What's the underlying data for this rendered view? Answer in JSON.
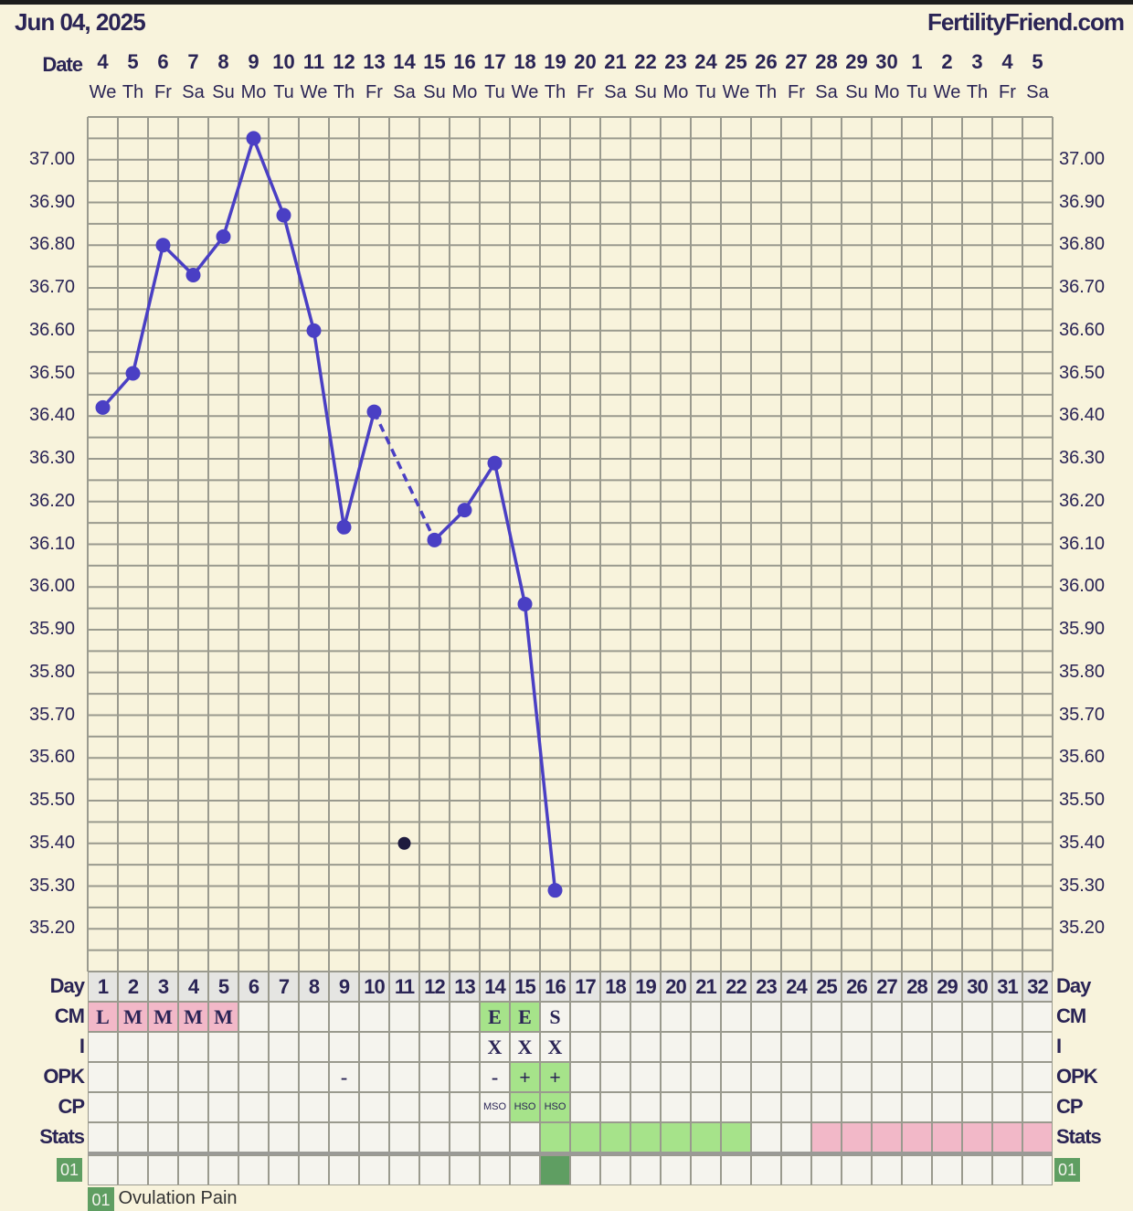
{
  "header": {
    "date": "Jun 04, 2025",
    "brand": "FertilityFriend.com"
  },
  "labels": {
    "date": "Date",
    "day": "Day",
    "cm": "CM",
    "i": "I",
    "opk": "OPK",
    "cp": "CP",
    "stats": "Stats",
    "tag": "01"
  },
  "legend": {
    "code": "01",
    "text": "Ovulation Pain"
  },
  "colors": {
    "line": "#4a3fc4",
    "excluded_point": "#1e1a3e",
    "pink": "#f2b8c8",
    "green": "#a6e38a",
    "dark_green": "#5f9e62",
    "background": "#f8f3dc",
    "grid": "#9a9a8e"
  },
  "chart_data": {
    "type": "line",
    "ylim": [
      35.1,
      37.1
    ],
    "yticks": [
      "37.00",
      "36.90",
      "36.80",
      "36.70",
      "36.60",
      "36.50",
      "36.40",
      "36.30",
      "36.20",
      "36.10",
      "36.00",
      "35.90",
      "35.80",
      "35.70",
      "35.60",
      "35.50",
      "35.40",
      "35.30",
      "35.20"
    ],
    "grid": true,
    "dates": [
      "4",
      "5",
      "6",
      "7",
      "8",
      "9",
      "10",
      "11",
      "12",
      "13",
      "14",
      "15",
      "16",
      "17",
      "18",
      "19",
      "20",
      "21",
      "22",
      "23",
      "24",
      "25",
      "26",
      "27",
      "28",
      "29",
      "30",
      "1",
      "2",
      "3",
      "4",
      "5"
    ],
    "weekdays": [
      "We",
      "Th",
      "Fr",
      "Sa",
      "Su",
      "Mo",
      "Tu",
      "We",
      "Th",
      "Fr",
      "Sa",
      "Su",
      "Mo",
      "Tu",
      "We",
      "Th",
      "Fr",
      "Sa",
      "Su",
      "Mo",
      "Tu",
      "We",
      "Th",
      "Fr",
      "Sa",
      "Su",
      "Mo",
      "Tu",
      "We",
      "Th",
      "Fr",
      "Sa"
    ],
    "days": [
      1,
      2,
      3,
      4,
      5,
      6,
      7,
      8,
      9,
      10,
      11,
      12,
      13,
      14,
      15,
      16,
      17,
      18,
      19,
      20,
      21,
      22,
      23,
      24,
      25,
      26,
      27,
      28,
      29,
      30,
      31,
      32
    ],
    "temperatures": [
      36.42,
      36.5,
      36.8,
      36.73,
      36.82,
      37.05,
      36.87,
      36.6,
      36.14,
      36.41,
      35.4,
      36.11,
      36.18,
      36.29,
      35.96,
      35.29
    ],
    "excluded_days": [
      11
    ]
  },
  "rows": {
    "cm": [
      "L",
      "M",
      "M",
      "M",
      "M",
      "",
      "",
      "",
      "",
      "",
      "",
      "",
      "",
      "E",
      "E",
      "S"
    ],
    "cm_colors": [
      "pink",
      "pink",
      "pink",
      "pink",
      "pink",
      "",
      "",
      "",
      "",
      "",
      "",
      "",
      "",
      "green",
      "green",
      ""
    ],
    "i": [
      "",
      "",
      "",
      "",
      "",
      "",
      "",
      "",
      "",
      "",
      "",
      "",
      "",
      "X",
      "X",
      "X"
    ],
    "opk": [
      "",
      "",
      "",
      "",
      "",
      "",
      "",
      "",
      "-",
      "",
      "",
      "",
      "",
      "-",
      "+",
      "+"
    ],
    "opk_colors": [
      "",
      "",
      "",
      "",
      "",
      "",
      "",
      "",
      "",
      "",
      "",
      "",
      "",
      "",
      "green",
      "green"
    ],
    "cp": [
      "",
      "",
      "",
      "",
      "",
      "",
      "",
      "",
      "",
      "",
      "",
      "",
      "",
      "MSO",
      "HSO",
      "HSO"
    ],
    "cp_colors": [
      "",
      "",
      "",
      "",
      "",
      "",
      "",
      "",
      "",
      "",
      "",
      "",
      "",
      "",
      "green",
      "green"
    ],
    "stats_colors": [
      "",
      "",
      "",
      "",
      "",
      "",
      "",
      "",
      "",
      "",
      "",
      "",
      "",
      "",
      "",
      "green",
      "green",
      "green",
      "green",
      "green",
      "green",
      "green",
      "",
      "",
      "pink",
      "pink",
      "pink",
      "pink",
      "pink",
      "pink",
      "pink",
      "pink"
    ],
    "tag01_days": [
      16
    ]
  }
}
